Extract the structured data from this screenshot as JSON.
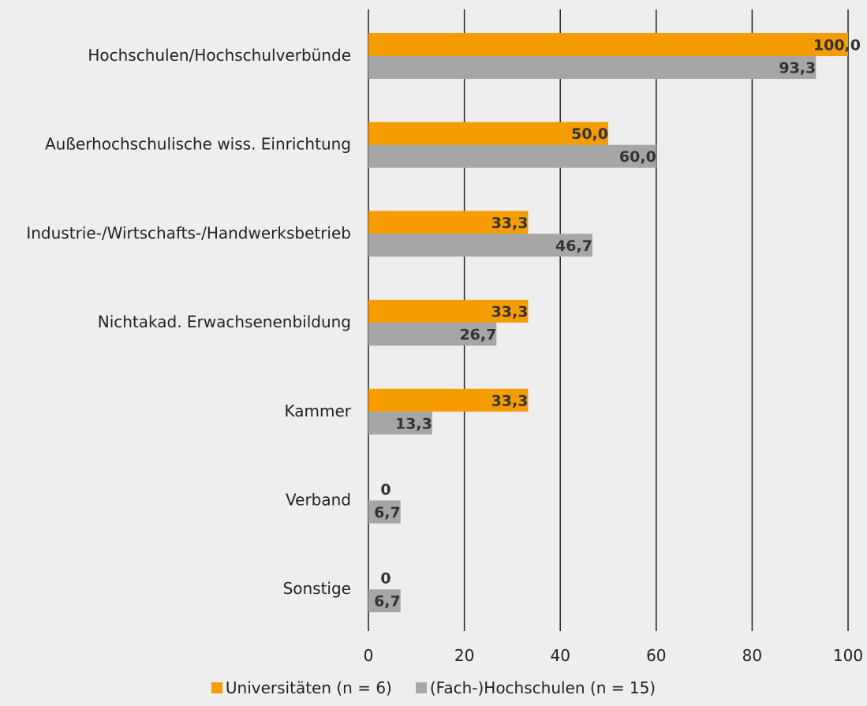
{
  "chart_data": {
    "type": "bar",
    "orientation": "horizontal",
    "categories": [
      "Hochschulen/Hochschulverbünde",
      "Außerhochschulische wiss. Einrichtung",
      "Industrie-/Wirtschafts-/Handwerksbetrieb",
      "Nichtakad. Erwachsenenbildung",
      "Kammer",
      "Verband",
      "Sonstige"
    ],
    "series": [
      {
        "name": "Universitäten (n = 6)",
        "color": "#f59c00",
        "values": [
          100.0,
          50.0,
          33.3,
          33.3,
          33.3,
          0,
          0
        ],
        "labels": [
          "100,0",
          "50,0",
          "33,3",
          "33,3",
          "33,3",
          "0",
          "0"
        ]
      },
      {
        "name": "(Fach-)Hochschulen (n = 15)",
        "color": "#a6a6a6",
        "values": [
          93.3,
          60.0,
          46.7,
          26.7,
          13.3,
          6.7,
          6.7
        ],
        "labels": [
          "93,3",
          "60,0",
          "46,7",
          "26,7",
          "13,3",
          "6,7",
          "6,7"
        ]
      }
    ],
    "xlim": [
      0,
      100
    ],
    "xticks": [
      0,
      20,
      40,
      60,
      80,
      100
    ],
    "xtick_labels": [
      "0",
      "20",
      "40",
      "60",
      "80",
      "100"
    ],
    "grid": "vertical",
    "legend_position": "bottom",
    "title": "",
    "xlabel": "",
    "ylabel": ""
  }
}
